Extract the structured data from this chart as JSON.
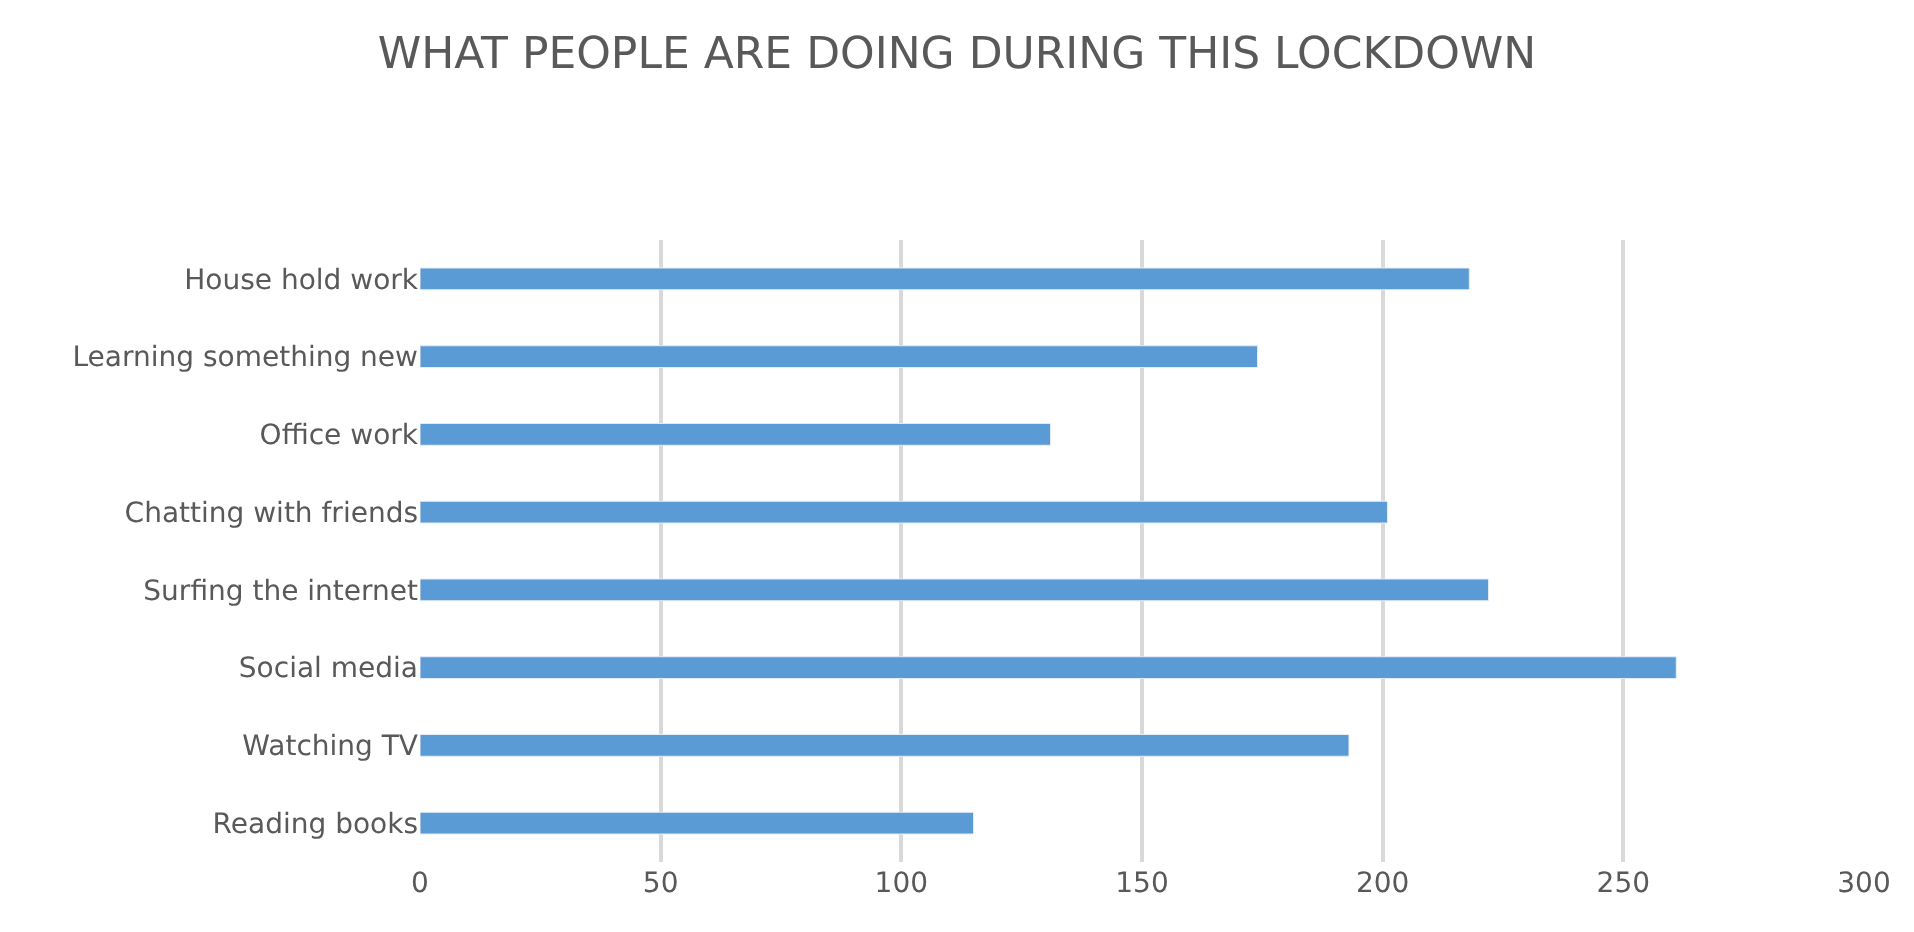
{
  "chart_data": {
    "type": "bar",
    "orientation": "horizontal",
    "title": "WHAT PEOPLE ARE DOING DURING THIS LOCKDOWN",
    "categories": [
      "House hold work",
      "Learning something new",
      "Office work",
      "Chatting with friends",
      "Surfing the internet",
      "Social media",
      "Watching TV",
      "Reading books"
    ],
    "values": [
      218,
      174,
      131,
      201,
      222,
      261,
      193,
      115
    ],
    "color": "#5b9bd5",
    "xlim": [
      0,
      300
    ],
    "xticks": [
      0,
      50,
      100,
      150,
      200,
      250,
      300
    ],
    "grid": "x",
    "legend": false
  }
}
